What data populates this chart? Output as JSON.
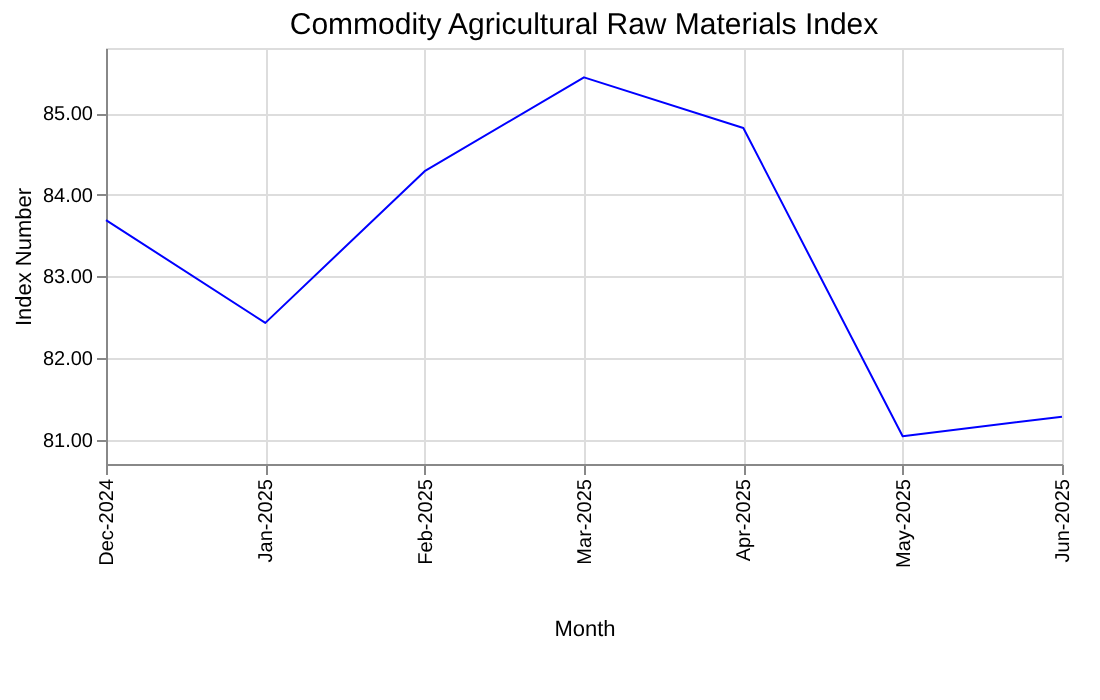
{
  "chart_data": {
    "type": "line",
    "title": "Commodity Agricultural Raw Materials Index",
    "xlabel": "Month",
    "ylabel": "Index Number",
    "categories": [
      "Dec-2024",
      "Jan-2025",
      "Feb-2025",
      "Mar-2025",
      "Apr-2025",
      "May-2025",
      "Jun-2025"
    ],
    "series": [
      {
        "color": "#0000ff",
        "values": [
          83.69,
          82.43,
          84.29,
          85.44,
          84.82,
          81.04,
          81.28
        ]
      }
    ],
    "ylim": [
      80.7,
      85.8
    ],
    "yticks": [
      {
        "value": 81,
        "label": "81.00"
      },
      {
        "value": 82,
        "label": "82.00"
      },
      {
        "value": 83,
        "label": "83.00"
      },
      {
        "value": 84,
        "label": "84.00"
      },
      {
        "value": 85,
        "label": "85.00"
      }
    ],
    "grid": true,
    "marker": "none",
    "line_style": "solid"
  }
}
